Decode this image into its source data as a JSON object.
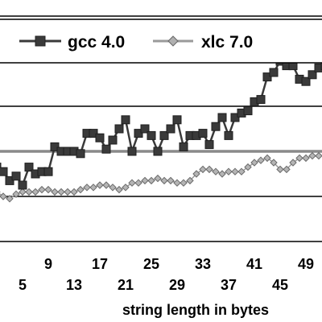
{
  "chart_data": {
    "type": "line",
    "xlabel": "string length in bytes",
    "xticks_top": [
      "9",
      "17",
      "25",
      "33",
      "41",
      "49"
    ],
    "xticks_bottom": [
      "5",
      "13",
      "21",
      "29",
      "37",
      "45"
    ],
    "xlim": [
      1,
      52
    ],
    "ylim": [
      0,
      100
    ],
    "grid": "horizontal",
    "legend_position": "top",
    "series": [
      {
        "name": "gcc 4.0",
        "marker": "square",
        "color": "#3a3a3a",
        "x": [
          1,
          2,
          3,
          4,
          5,
          6,
          7,
          8,
          9,
          10,
          11,
          12,
          13,
          14,
          15,
          16,
          17,
          18,
          19,
          20,
          21,
          22,
          23,
          24,
          25,
          26,
          27,
          28,
          29,
          30,
          31,
          32,
          33,
          34,
          35,
          36,
          37,
          38,
          39,
          40,
          41,
          42,
          43,
          44,
          45,
          46,
          47,
          48,
          49,
          50,
          51,
          52
        ],
        "values": [
          33,
          31,
          27,
          29,
          25,
          33,
          30,
          31,
          31,
          42,
          40,
          40,
          40,
          39,
          48,
          48,
          46,
          41,
          45,
          50,
          54,
          40,
          48,
          50,
          47,
          40,
          47,
          50,
          54,
          42,
          47,
          47,
          48,
          43,
          51,
          55,
          47,
          55,
          57,
          58,
          62,
          63,
          73,
          75,
          80,
          78,
          78,
          72,
          71,
          74,
          77,
          78
        ]
      },
      {
        "name": "xlc 7.0",
        "marker": "diamond",
        "color": "#9a9a9a",
        "x": [
          1,
          2,
          3,
          4,
          5,
          6,
          7,
          8,
          9,
          10,
          11,
          12,
          13,
          14,
          15,
          16,
          17,
          18,
          19,
          20,
          21,
          22,
          23,
          24,
          25,
          26,
          27,
          28,
          29,
          30,
          31,
          32,
          33,
          34,
          35,
          36,
          37,
          38,
          39,
          40,
          41,
          42,
          43,
          44,
          45,
          46,
          47,
          48,
          49,
          50,
          51,
          52
        ],
        "values": [
          22,
          20,
          19,
          21,
          22,
          22,
          22,
          23,
          23,
          22,
          22,
          22,
          22,
          23,
          24,
          24,
          25,
          25,
          24,
          23,
          24,
          26,
          26,
          27,
          27,
          28,
          27,
          27,
          26,
          26,
          27,
          30,
          32,
          32,
          31,
          30,
          31,
          31,
          31,
          33,
          35,
          36,
          37,
          35,
          32,
          32,
          35,
          37,
          37,
          38,
          38,
          38
        ]
      }
    ],
    "reference_line": {
      "value": 40
    }
  }
}
